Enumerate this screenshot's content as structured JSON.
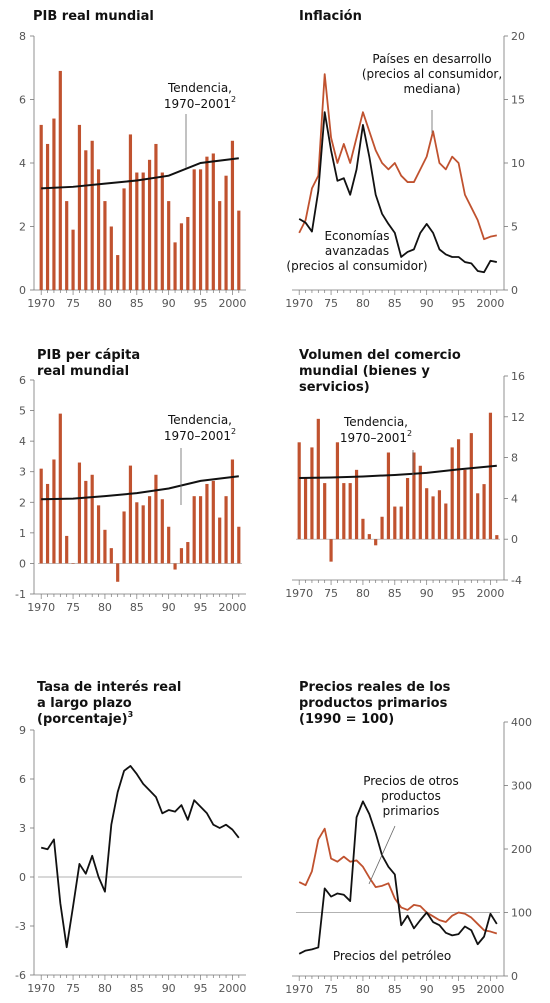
{
  "colors": {
    "bar": "#c0522f",
    "line_dark": "#111111",
    "line_orange": "#c0522f",
    "axis": "#777777",
    "zero": "#999999"
  },
  "chart_data": [
    {
      "id": "gdp",
      "type": "bar",
      "title_lines": [
        "PIB real mundial"
      ],
      "axis_side": "left",
      "ylim": [
        0,
        8
      ],
      "yticks": [
        0,
        2,
        4,
        6,
        8
      ],
      "x_start": 1970,
      "x_end": 2001,
      "xtick_labels": [
        "1970",
        "75",
        "80",
        "85",
        "90",
        "95",
        "2000"
      ],
      "x": [
        1970,
        1971,
        1972,
        1973,
        1974,
        1975,
        1976,
        1977,
        1978,
        1979,
        1980,
        1981,
        1982,
        1983,
        1984,
        1985,
        1986,
        1987,
        1988,
        1989,
        1990,
        1991,
        1992,
        1993,
        1994,
        1995,
        1996,
        1997,
        1998,
        1999,
        2000,
        2001
      ],
      "values": [
        5.2,
        4.6,
        5.4,
        6.9,
        2.8,
        1.9,
        5.2,
        4.4,
        4.7,
        3.8,
        2.8,
        2.0,
        1.1,
        3.2,
        4.9,
        3.7,
        3.7,
        4.1,
        4.6,
        3.7,
        2.8,
        1.5,
        2.1,
        2.3,
        3.8,
        3.8,
        4.2,
        4.3,
        2.8,
        3.6,
        4.7,
        2.5
      ],
      "trend": {
        "x": [
          1970,
          1975,
          1980,
          1985,
          1990,
          1995,
          2001
        ],
        "values": [
          3.2,
          3.25,
          3.35,
          3.45,
          3.6,
          4.0,
          4.15
        ]
      },
      "annotations": [
        {
          "lines": [
            "Tendencia,",
            "1970–2001"
          ],
          "sup": "2"
        }
      ]
    },
    {
      "id": "inflation",
      "type": "line",
      "title_lines": [
        "Inflación"
      ],
      "axis_side": "right",
      "ylim": [
        0,
        20
      ],
      "yticks": [
        0,
        5,
        10,
        15,
        20
      ],
      "x_start": 1970,
      "x_end": 2001,
      "xtick_labels": [
        "1970",
        "75",
        "80",
        "85",
        "90",
        "95",
        "2000"
      ],
      "series": [
        {
          "name": "Países en desarrollo (precios al consumidor, mediana)",
          "label_lines": [
            "Países en desarrollo",
            "(precios al consumidor,",
            "mediana)"
          ],
          "color_key": "line_orange",
          "x": [
            1970,
            1971,
            1972,
            1973,
            1974,
            1975,
            1976,
            1977,
            1978,
            1979,
            1980,
            1981,
            1982,
            1983,
            1984,
            1985,
            1986,
            1987,
            1988,
            1989,
            1990,
            1991,
            1992,
            1993,
            1994,
            1995,
            1996,
            1997,
            1998,
            1999,
            2000,
            2001
          ],
          "values": [
            4.5,
            5.5,
            8.0,
            9.0,
            17.0,
            12.0,
            10.0,
            11.5,
            10.0,
            12.0,
            14.0,
            12.5,
            11.0,
            10.0,
            9.5,
            10.0,
            9.0,
            8.5,
            8.5,
            9.5,
            10.5,
            12.5,
            10.0,
            9.5,
            10.5,
            10.0,
            7.5,
            6.5,
            5.5,
            4.0,
            4.2,
            4.3
          ]
        },
        {
          "name": "Economías avanzadas (precios al consumidor)",
          "label_lines": [
            "Economías",
            "avanzadas",
            "(precios al consumidor)"
          ],
          "color_key": "line_dark",
          "x": [
            1970,
            1971,
            1972,
            1973,
            1974,
            1975,
            1976,
            1977,
            1978,
            1979,
            1980,
            1981,
            1982,
            1983,
            1984,
            1985,
            1986,
            1987,
            1988,
            1989,
            1990,
            1991,
            1992,
            1993,
            1994,
            1995,
            1996,
            1997,
            1998,
            1999,
            2000,
            2001
          ],
          "values": [
            5.6,
            5.3,
            4.6,
            7.8,
            14.0,
            11.0,
            8.6,
            8.8,
            7.5,
            9.5,
            13.0,
            10.5,
            7.5,
            6.0,
            5.2,
            4.5,
            2.6,
            3.0,
            3.2,
            4.5,
            5.2,
            4.5,
            3.2,
            2.8,
            2.6,
            2.6,
            2.2,
            2.1,
            1.5,
            1.4,
            2.3,
            2.2
          ]
        }
      ]
    },
    {
      "id": "gdp_pc",
      "type": "bar",
      "title_lines": [
        "PIB per cápita",
        "real mundial"
      ],
      "axis_side": "left",
      "ylim": [
        -1,
        6
      ],
      "yticks": [
        -1,
        0,
        1,
        2,
        3,
        4,
        5,
        6
      ],
      "x_start": 1970,
      "x_end": 2001,
      "xtick_labels": [
        "1970",
        "75",
        "80",
        "85",
        "90",
        "95",
        "2000"
      ],
      "x": [
        1970,
        1971,
        1972,
        1973,
        1974,
        1975,
        1976,
        1977,
        1978,
        1979,
        1980,
        1981,
        1982,
        1983,
        1984,
        1985,
        1986,
        1987,
        1988,
        1989,
        1990,
        1991,
        1992,
        1993,
        1994,
        1995,
        1996,
        1997,
        1998,
        1999,
        2000,
        2001
      ],
      "values": [
        3.1,
        2.6,
        3.4,
        4.9,
        0.9,
        0.0,
        3.3,
        2.7,
        2.9,
        1.9,
        1.1,
        0.5,
        -0.6,
        1.7,
        3.2,
        2.0,
        1.9,
        2.2,
        2.9,
        2.1,
        1.2,
        -0.2,
        0.5,
        0.7,
        2.2,
        2.2,
        2.6,
        2.7,
        1.5,
        2.2,
        3.4,
        1.2
      ],
      "trend": {
        "x": [
          1970,
          1975,
          1980,
          1985,
          1990,
          1995,
          2001
        ],
        "values": [
          2.1,
          2.12,
          2.2,
          2.3,
          2.45,
          2.7,
          2.85
        ]
      },
      "annotations": [
        {
          "lines": [
            "Tendencia,",
            "1970–2001"
          ],
          "sup": "2"
        }
      ]
    },
    {
      "id": "trade",
      "type": "bar",
      "title_lines": [
        "Volumen del comercio",
        "mundial (bienes y",
        "servicios)"
      ],
      "axis_side": "right",
      "ylim": [
        -4,
        16
      ],
      "yticks": [
        -4,
        0,
        4,
        8,
        12,
        16
      ],
      "x_start": 1970,
      "x_end": 2001,
      "xtick_labels": [
        "1970",
        "75",
        "80",
        "85",
        "90",
        "95",
        "2000"
      ],
      "x": [
        1970,
        1971,
        1972,
        1973,
        1974,
        1975,
        1976,
        1977,
        1978,
        1979,
        1980,
        1981,
        1982,
        1983,
        1984,
        1985,
        1986,
        1987,
        1988,
        1989,
        1990,
        1991,
        1992,
        1993,
        1994,
        1995,
        1996,
        1997,
        1998,
        1999,
        2000,
        2001
      ],
      "values": [
        9.5,
        6.0,
        9.0,
        11.8,
        5.5,
        -2.2,
        9.5,
        5.5,
        5.5,
        6.8,
        2.0,
        0.5,
        -0.6,
        2.2,
        8.5,
        3.2,
        3.2,
        6.0,
        8.5,
        7.2,
        5.0,
        4.2,
        4.8,
        3.5,
        9.0,
        9.8,
        6.8,
        10.4,
        4.5,
        5.4,
        12.4,
        0.4
      ],
      "trend": {
        "x": [
          1970,
          1975,
          1980,
          1985,
          1990,
          1995,
          2001
        ],
        "values": [
          6.0,
          6.05,
          6.15,
          6.3,
          6.5,
          6.85,
          7.2
        ]
      },
      "annotations": [
        {
          "lines": [
            "Tendencia,",
            "1970–2001"
          ],
          "sup": "2"
        }
      ]
    },
    {
      "id": "interest",
      "type": "line",
      "title_lines": [
        "Tasa de interés real",
        "a largo plazo",
        "(porcentaje)"
      ],
      "title_sup": "3",
      "axis_side": "left",
      "ylim": [
        -6,
        9
      ],
      "yticks": [
        -6,
        -3,
        0,
        3,
        6,
        9
      ],
      "x_start": 1970,
      "x_end": 2001,
      "xtick_labels": [
        "1970",
        "75",
        "80",
        "85",
        "90",
        "95",
        "2000"
      ],
      "series": [
        {
          "name": "",
          "label_lines": [],
          "color_key": "line_dark",
          "x": [
            1970,
            1971,
            1972,
            1973,
            1974,
            1975,
            1976,
            1977,
            1978,
            1979,
            1980,
            1981,
            1982,
            1983,
            1984,
            1985,
            1986,
            1987,
            1988,
            1989,
            1990,
            1991,
            1992,
            1993,
            1994,
            1995,
            1996,
            1997,
            1998,
            1999,
            2000,
            2001
          ],
          "values": [
            1.8,
            1.7,
            2.3,
            -1.6,
            -4.3,
            -1.8,
            0.8,
            0.2,
            1.3,
            0.0,
            -0.9,
            3.2,
            5.2,
            6.5,
            6.8,
            6.3,
            5.7,
            5.3,
            4.9,
            3.9,
            4.1,
            4.0,
            4.4,
            3.5,
            4.7,
            4.3,
            3.9,
            3.2,
            3.0,
            3.2,
            2.9,
            2.4
          ]
        }
      ]
    },
    {
      "id": "commodities",
      "type": "line",
      "title_lines": [
        "Precios reales de los",
        "productos primarios",
        "(1990 = 100)"
      ],
      "axis_side": "right",
      "ylim": [
        0,
        400
      ],
      "yticks": [
        0,
        100,
        200,
        300,
        400
      ],
      "reference_line": 100,
      "x_start": 1970,
      "x_end": 2001,
      "xtick_labels": [
        "1970",
        "75",
        "80",
        "85",
        "90",
        "95",
        "2000"
      ],
      "series": [
        {
          "name": "Precios de otros productos primarios",
          "label_lines": [
            "Precios de otros",
            "productos",
            "primarios"
          ],
          "color_key": "line_orange",
          "x": [
            1970,
            1971,
            1972,
            1973,
            1974,
            1975,
            1976,
            1977,
            1978,
            1979,
            1980,
            1981,
            1982,
            1983,
            1984,
            1985,
            1986,
            1987,
            1988,
            1989,
            1990,
            1991,
            1992,
            1993,
            1994,
            1995,
            1996,
            1997,
            1998,
            1999,
            2000,
            2001
          ],
          "values": [
            148,
            143,
            165,
            215,
            232,
            185,
            180,
            188,
            180,
            182,
            172,
            155,
            140,
            142,
            146,
            122,
            108,
            104,
            112,
            110,
            100,
            94,
            88,
            85,
            95,
            100,
            98,
            92,
            82,
            72,
            70,
            67
          ]
        },
        {
          "name": "Precios del petróleo",
          "label_lines": [
            "Precios del petróleo"
          ],
          "color_key": "line_dark",
          "x": [
            1970,
            1971,
            1972,
            1973,
            1974,
            1975,
            1976,
            1977,
            1978,
            1979,
            1980,
            1981,
            1982,
            1983,
            1984,
            1985,
            1986,
            1987,
            1988,
            1989,
            1990,
            1991,
            1992,
            1993,
            1994,
            1995,
            1996,
            1997,
            1998,
            1999,
            2000,
            2001
          ],
          "values": [
            35,
            40,
            42,
            45,
            138,
            125,
            130,
            128,
            118,
            250,
            275,
            255,
            225,
            190,
            172,
            160,
            80,
            95,
            75,
            88,
            100,
            85,
            80,
            68,
            64,
            66,
            78,
            72,
            50,
            62,
            98,
            82
          ]
        }
      ]
    }
  ]
}
